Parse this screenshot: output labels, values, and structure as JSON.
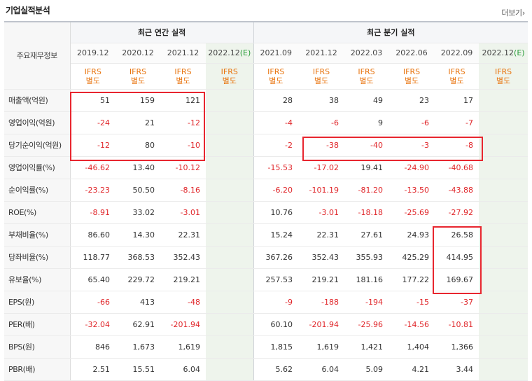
{
  "title": "기업실적분석",
  "more_label": "더보기",
  "more_arrow": "›",
  "label_header": "주요재무정보",
  "annual_header": "최근 연간 실적",
  "quarter_header": "최근 분기 실적",
  "annual_periods": [
    "2019.12",
    "2020.12",
    "2021.12",
    "2022.12"
  ],
  "quarter_periods": [
    "2021.09",
    "2021.12",
    "2022.03",
    "2022.06",
    "2022.09",
    "2022.12"
  ],
  "estimate_mark": "(E)",
  "ifrs_line1": "IFRS",
  "ifrs_line2": "별도",
  "rows": [
    {
      "label": "매출액(억원)",
      "annual": [
        "51",
        "159",
        "121",
        ""
      ],
      "quarter": [
        "28",
        "38",
        "49",
        "23",
        "17",
        ""
      ]
    },
    {
      "label": "영업이익(억원)",
      "annual": [
        "-24",
        "21",
        "-12",
        ""
      ],
      "quarter": [
        "-4",
        "-6",
        "9",
        "-6",
        "-7",
        ""
      ]
    },
    {
      "label": "당기순이익(억원)",
      "annual": [
        "-12",
        "80",
        "-10",
        ""
      ],
      "quarter": [
        "-2",
        "-38",
        "-40",
        "-3",
        "-8",
        ""
      ]
    },
    {
      "label": "영업이익률(%)",
      "annual": [
        "-46.62",
        "13.40",
        "-10.12",
        ""
      ],
      "quarter": [
        "-15.53",
        "-17.02",
        "19.41",
        "-24.90",
        "-40.68",
        ""
      ]
    },
    {
      "label": "순이익률(%)",
      "annual": [
        "-23.23",
        "50.50",
        "-8.16",
        ""
      ],
      "quarter": [
        "-6.20",
        "-101.19",
        "-81.20",
        "-13.50",
        "-43.88",
        ""
      ]
    },
    {
      "label": "ROE(%)",
      "annual": [
        "-8.91",
        "33.02",
        "-3.01",
        ""
      ],
      "quarter": [
        "10.76",
        "-3.01",
        "-18.18",
        "-25.69",
        "-27.92",
        ""
      ]
    },
    {
      "label": "부채비율(%)",
      "annual": [
        "86.60",
        "14.30",
        "22.31",
        ""
      ],
      "quarter": [
        "15.24",
        "22.31",
        "27.61",
        "24.93",
        "26.58",
        ""
      ]
    },
    {
      "label": "당좌비율(%)",
      "annual": [
        "118.77",
        "368.53",
        "352.43",
        ""
      ],
      "quarter": [
        "367.26",
        "352.43",
        "355.93",
        "425.29",
        "414.95",
        ""
      ]
    },
    {
      "label": "유보율(%)",
      "annual": [
        "65.40",
        "229.72",
        "219.21",
        ""
      ],
      "quarter": [
        "257.53",
        "219.21",
        "181.16",
        "177.22",
        "169.67",
        ""
      ]
    },
    {
      "label": "EPS(원)",
      "annual": [
        "-66",
        "413",
        "-48",
        ""
      ],
      "quarter": [
        "-9",
        "-188",
        "-194",
        "-15",
        "-37",
        ""
      ]
    },
    {
      "label": "PER(배)",
      "annual": [
        "-32.04",
        "62.91",
        "-201.94",
        ""
      ],
      "quarter": [
        "60.10",
        "-201.94",
        "-25.96",
        "-14.56",
        "-10.81",
        ""
      ]
    },
    {
      "label": "BPS(원)",
      "annual": [
        "846",
        "1,673",
        "1,619",
        ""
      ],
      "quarter": [
        "1,815",
        "1,619",
        "1,421",
        "1,404",
        "1,366",
        ""
      ]
    },
    {
      "label": "PBR(배)",
      "annual": [
        "2.51",
        "15.51",
        "6.04",
        ""
      ],
      "quarter": [
        "5.62",
        "6.04",
        "5.09",
        "4.21",
        "3.44",
        ""
      ]
    }
  ],
  "colors": {
    "negative": "#e0262a",
    "ifrs": "#e8730c",
    "highlight": "#e8262f",
    "estimate_bg": "#eef4ec"
  }
}
